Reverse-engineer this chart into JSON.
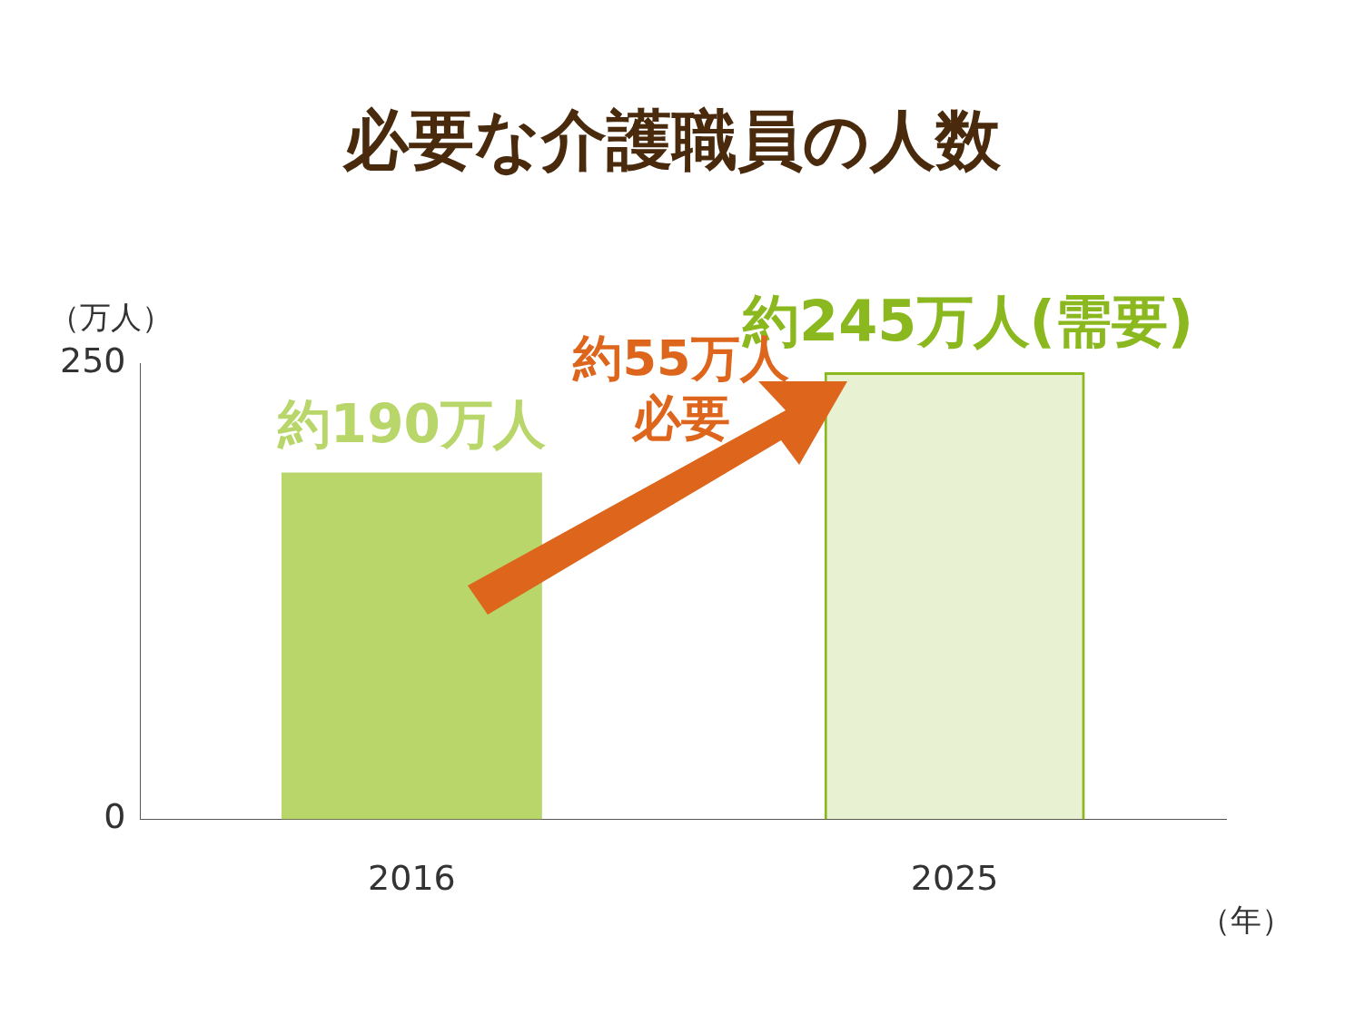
{
  "chart_data": {
    "type": "bar",
    "title": "必要な介護職員の人数",
    "ylabel": "（万人）",
    "xlabel": "（年）",
    "categories": [
      "2016",
      "2025"
    ],
    "series": [
      {
        "color": "#b8d66a",
        "values": [
          190,
          null
        ],
        "value_labels": [
          "約190万人",
          null
        ]
      },
      {
        "color": "#8ab81e",
        "values": [
          null,
          245
        ],
        "value_labels": [
          null,
          "約245万人(需要)"
        ],
        "line_style": "dashed"
      }
    ],
    "ylim": [
      0,
      250
    ],
    "yticks": [
      0,
      250
    ],
    "grid": false,
    "legend": false,
    "annotations": [
      "約55万人",
      "必要"
    ]
  }
}
